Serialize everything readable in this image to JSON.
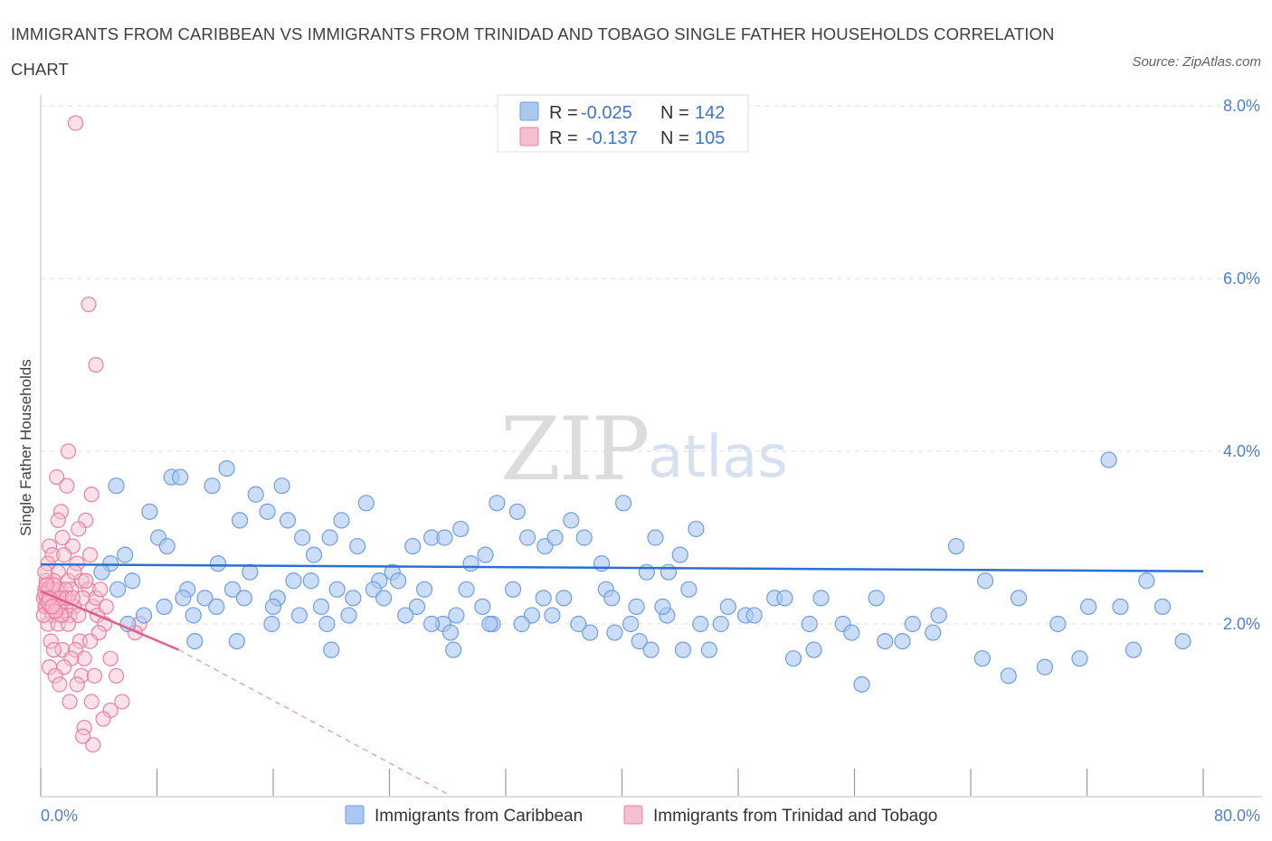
{
  "header": {
    "title": "IMMIGRANTS FROM CARIBBEAN VS IMMIGRANTS FROM TRINIDAD AND TOBAGO SINGLE FATHER HOUSEHOLDS CORRELATION CHART",
    "source": "Source: ZipAtlas.com"
  },
  "watermark": {
    "zip": "ZIP",
    "atlas": "atlas"
  },
  "legend_top": [
    {
      "r_label": "R =",
      "r_value": "-0.025",
      "n_label": "N =",
      "n_value": "142"
    },
    {
      "r_label": "R =",
      "r_value": "-0.137",
      "n_label": "N =",
      "n_value": "105"
    }
  ],
  "legend_bottom": [
    {
      "label": "Immigrants from Caribbean"
    },
    {
      "label": "Immigrants from Trinidad and Tobago"
    }
  ],
  "colors": {
    "blue_fill": "#aac8f2",
    "blue_stroke": "#6f9ee0",
    "blue_line": "#2a6fd4",
    "pink_fill": "#f6bfd0",
    "pink_stroke": "#ea7fa0",
    "pink_line": "#e0608a",
    "grid": "#dddddd",
    "axis": "#bbbbbb",
    "tick_text": "#4f7fd1"
  },
  "chart_data": {
    "type": "scatter",
    "title": "IMMIGRANTS FROM CARIBBEAN VS IMMIGRANTS FROM TRINIDAD AND TOBAGO SINGLE FATHER HOUSEHOLDS CORRELATION CHART",
    "xlabel": "",
    "ylabel": "Single Father Households",
    "xlim": [
      0,
      80
    ],
    "ylim": [
      0,
      8
    ],
    "y_ticks": [
      {
        "value": 2,
        "label": "2.0%"
      },
      {
        "value": 4,
        "label": "4.0%"
      },
      {
        "value": 6,
        "label": "6.0%"
      },
      {
        "value": 8,
        "label": "8.0%"
      }
    ],
    "x_tick_labels": {
      "min": "0.0%",
      "max": "80.0%"
    },
    "grid": true,
    "series": [
      {
        "name": "Immigrants from Caribbean",
        "color": "blue",
        "R": -0.025,
        "N": 142,
        "trend": {
          "x": [
            0,
            80
          ],
          "y": [
            2.69,
            2.61
          ],
          "dashed_extension": false
        },
        "points": [
          [
            5.2,
            3.6
          ],
          [
            7.5,
            3.3
          ],
          [
            8.1,
            3.0
          ],
          [
            8.7,
            2.9
          ],
          [
            9.0,
            3.7
          ],
          [
            9.6,
            3.7
          ],
          [
            11.8,
            3.6
          ],
          [
            12.2,
            2.7
          ],
          [
            12.8,
            3.8
          ],
          [
            13.7,
            3.2
          ],
          [
            14.8,
            3.5
          ],
          [
            15.6,
            3.3
          ],
          [
            16.3,
            2.3
          ],
          [
            16.6,
            3.6
          ],
          [
            17.0,
            3.2
          ],
          [
            18.0,
            3.0
          ],
          [
            18.8,
            2.8
          ],
          [
            19.9,
            3.0
          ],
          [
            20.7,
            3.2
          ],
          [
            21.8,
            2.9
          ],
          [
            22.4,
            3.4
          ],
          [
            23.3,
            2.5
          ],
          [
            24.2,
            2.6
          ],
          [
            25.6,
            2.9
          ],
          [
            26.9,
            3.0
          ],
          [
            27.8,
            3.0
          ],
          [
            28.9,
            3.1
          ],
          [
            29.6,
            2.7
          ],
          [
            30.6,
            2.8
          ],
          [
            31.4,
            3.4
          ],
          [
            32.8,
            3.3
          ],
          [
            33.5,
            3.0
          ],
          [
            34.7,
            2.9
          ],
          [
            35.4,
            3.0
          ],
          [
            36.5,
            3.2
          ],
          [
            37.4,
            3.0
          ],
          [
            38.6,
            2.7
          ],
          [
            40.1,
            3.4
          ],
          [
            41.7,
            2.6
          ],
          [
            42.3,
            3.0
          ],
          [
            43.2,
            2.6
          ],
          [
            44.0,
            2.8
          ],
          [
            45.1,
            3.1
          ],
          [
            5.8,
            2.8
          ],
          [
            6.3,
            2.5
          ],
          [
            7.1,
            2.1
          ],
          [
            10.1,
            2.4
          ],
          [
            11.3,
            2.3
          ],
          [
            13.2,
            2.4
          ],
          [
            14.4,
            2.6
          ],
          [
            15.9,
            2.0
          ],
          [
            17.4,
            2.5
          ],
          [
            18.6,
            2.5
          ],
          [
            19.3,
            2.2
          ],
          [
            20.4,
            2.4
          ],
          [
            21.2,
            2.1
          ],
          [
            22.9,
            2.4
          ],
          [
            24.6,
            2.5
          ],
          [
            25.9,
            2.2
          ],
          [
            26.4,
            2.4
          ],
          [
            27.7,
            2.0
          ],
          [
            28.2,
            1.9
          ],
          [
            29.3,
            2.4
          ],
          [
            30.4,
            2.2
          ],
          [
            31.1,
            2.0
          ],
          [
            32.5,
            2.4
          ],
          [
            33.8,
            2.1
          ],
          [
            34.6,
            2.3
          ],
          [
            36.0,
            2.3
          ],
          [
            37.8,
            1.9
          ],
          [
            38.9,
            2.4
          ],
          [
            39.5,
            1.9
          ],
          [
            40.6,
            2.0
          ],
          [
            41.2,
            1.8
          ],
          [
            42.0,
            1.7
          ],
          [
            43.1,
            2.1
          ],
          [
            44.2,
            1.7
          ],
          [
            45.4,
            2.0
          ],
          [
            46.0,
            1.7
          ],
          [
            47.3,
            2.2
          ],
          [
            48.5,
            2.1
          ],
          [
            50.5,
            2.3
          ],
          [
            51.8,
            1.6
          ],
          [
            52.9,
            2.0
          ],
          [
            53.7,
            2.3
          ],
          [
            55.2,
            2.0
          ],
          [
            56.5,
            1.3
          ],
          [
            58.1,
            1.8
          ],
          [
            60.0,
            2.0
          ],
          [
            61.4,
            1.9
          ],
          [
            63.0,
            2.9
          ],
          [
            64.8,
            1.6
          ],
          [
            66.6,
            1.4
          ],
          [
            69.1,
            1.5
          ],
          [
            72.1,
            2.2
          ],
          [
            73.5,
            3.9
          ],
          [
            75.2,
            1.7
          ],
          [
            76.1,
            2.5
          ],
          [
            77.2,
            2.2
          ],
          [
            78.6,
            1.8
          ],
          [
            5.3,
            2.4
          ],
          [
            6.0,
            2.0
          ],
          [
            8.5,
            2.2
          ],
          [
            9.8,
            2.3
          ],
          [
            10.5,
            2.1
          ],
          [
            12.1,
            2.2
          ],
          [
            14.0,
            2.3
          ],
          [
            16.0,
            2.2
          ],
          [
            17.8,
            2.1
          ],
          [
            19.7,
            2.0
          ],
          [
            21.5,
            2.3
          ],
          [
            23.6,
            2.3
          ],
          [
            25.1,
            2.1
          ],
          [
            26.9,
            2.0
          ],
          [
            28.6,
            2.1
          ],
          [
            30.9,
            2.0
          ],
          [
            33.1,
            2.0
          ],
          [
            35.2,
            2.1
          ],
          [
            37.0,
            2.0
          ],
          [
            39.3,
            2.3
          ],
          [
            41.0,
            2.2
          ],
          [
            42.8,
            2.2
          ],
          [
            44.6,
            2.4
          ],
          [
            46.8,
            2.0
          ],
          [
            49.1,
            2.1
          ],
          [
            51.2,
            2.3
          ],
          [
            53.2,
            1.7
          ],
          [
            55.8,
            1.9
          ],
          [
            57.5,
            2.3
          ],
          [
            59.3,
            1.8
          ],
          [
            61.8,
            2.1
          ],
          [
            65.0,
            2.5
          ],
          [
            67.3,
            2.3
          ],
          [
            70.0,
            2.0
          ],
          [
            71.5,
            1.6
          ],
          [
            74.3,
            2.2
          ],
          [
            28.4,
            1.7
          ],
          [
            20.0,
            1.7
          ],
          [
            13.5,
            1.8
          ],
          [
            10.6,
            1.8
          ],
          [
            4.8,
            2.7
          ],
          [
            4.2,
            2.6
          ]
        ]
      },
      {
        "name": "Immigrants from Trinidad and Tobago",
        "color": "pink",
        "R": -0.137,
        "N": 105,
        "trend": {
          "x": [
            0,
            9.5
          ],
          "y": [
            2.38,
            1.7
          ],
          "dashed_extension": {
            "x": [
              9.5,
              28.0
            ],
            "y": [
              1.7,
              0.03
            ]
          }
        },
        "points": [
          [
            2.4,
            7.8
          ],
          [
            3.3,
            5.7
          ],
          [
            3.8,
            5.0
          ],
          [
            1.9,
            4.0
          ],
          [
            1.1,
            3.7
          ],
          [
            1.8,
            3.6
          ],
          [
            3.5,
            3.5
          ],
          [
            1.4,
            3.3
          ],
          [
            1.2,
            3.2
          ],
          [
            3.1,
            3.2
          ],
          [
            2.6,
            3.1
          ],
          [
            1.5,
            3.0
          ],
          [
            0.6,
            2.9
          ],
          [
            2.2,
            2.9
          ],
          [
            3.4,
            2.8
          ],
          [
            0.8,
            2.8
          ],
          [
            1.6,
            2.8
          ],
          [
            2.5,
            2.7
          ],
          [
            0.5,
            2.7
          ],
          [
            1.2,
            2.6
          ],
          [
            0.4,
            2.5
          ],
          [
            0.9,
            2.5
          ],
          [
            1.9,
            2.5
          ],
          [
            2.8,
            2.5
          ],
          [
            3.3,
            2.4
          ],
          [
            0.3,
            2.4
          ],
          [
            1.3,
            2.4
          ],
          [
            2.1,
            2.4
          ],
          [
            0.7,
            2.3
          ],
          [
            1.1,
            2.3
          ],
          [
            1.6,
            2.3
          ],
          [
            2.9,
            2.3
          ],
          [
            0.2,
            2.3
          ],
          [
            0.9,
            2.3
          ],
          [
            1.4,
            2.3
          ],
          [
            0.6,
            2.2
          ],
          [
            1.7,
            2.2
          ],
          [
            2.3,
            2.2
          ],
          [
            3.6,
            2.2
          ],
          [
            0.4,
            2.2
          ],
          [
            1.0,
            2.2
          ],
          [
            1.5,
            2.1
          ],
          [
            0.8,
            2.1
          ],
          [
            2.0,
            2.1
          ],
          [
            2.6,
            2.1
          ],
          [
            3.9,
            2.1
          ],
          [
            4.4,
            2.0
          ],
          [
            0.5,
            2.0
          ],
          [
            1.2,
            2.0
          ],
          [
            1.9,
            2.0
          ],
          [
            6.8,
            2.0
          ],
          [
            6.5,
            1.9
          ],
          [
            4.0,
            1.9
          ],
          [
            0.7,
            1.8
          ],
          [
            2.7,
            1.8
          ],
          [
            3.4,
            1.8
          ],
          [
            1.5,
            1.7
          ],
          [
            2.4,
            1.7
          ],
          [
            0.9,
            1.7
          ],
          [
            3.0,
            1.6
          ],
          [
            4.8,
            1.6
          ],
          [
            2.1,
            1.6
          ],
          [
            0.6,
            1.5
          ],
          [
            1.6,
            1.5
          ],
          [
            2.8,
            1.4
          ],
          [
            3.7,
            1.4
          ],
          [
            1.0,
            1.4
          ],
          [
            5.2,
            1.4
          ],
          [
            1.3,
            1.3
          ],
          [
            2.5,
            1.3
          ],
          [
            3.5,
            1.1
          ],
          [
            2.0,
            1.1
          ],
          [
            5.6,
            1.1
          ],
          [
            4.8,
            1.0
          ],
          [
            4.3,
            0.9
          ],
          [
            3.0,
            0.8
          ],
          [
            3.6,
            0.6
          ],
          [
            2.9,
            0.7
          ],
          [
            0.3,
            2.6
          ],
          [
            0.5,
            2.4
          ],
          [
            0.3,
            2.2
          ],
          [
            0.2,
            2.1
          ],
          [
            0.4,
            2.3
          ],
          [
            0.6,
            2.4
          ],
          [
            0.7,
            2.2
          ],
          [
            0.8,
            2.4
          ],
          [
            1.1,
            2.4
          ],
          [
            1.2,
            2.2
          ],
          [
            1.4,
            2.1
          ],
          [
            1.7,
            2.4
          ],
          [
            0.3,
            2.35
          ],
          [
            0.5,
            2.25
          ],
          [
            0.9,
            2.45
          ],
          [
            1.0,
            2.15
          ],
          [
            1.3,
            2.3
          ],
          [
            1.8,
            2.3
          ],
          [
            2.2,
            2.3
          ],
          [
            0.4,
            2.45
          ],
          [
            0.6,
            2.3
          ],
          [
            0.8,
            2.2
          ],
          [
            3.8,
            2.3
          ],
          [
            4.5,
            2.2
          ],
          [
            2.3,
            2.6
          ],
          [
            3.1,
            2.5
          ],
          [
            4.1,
            2.4
          ]
        ]
      }
    ]
  }
}
